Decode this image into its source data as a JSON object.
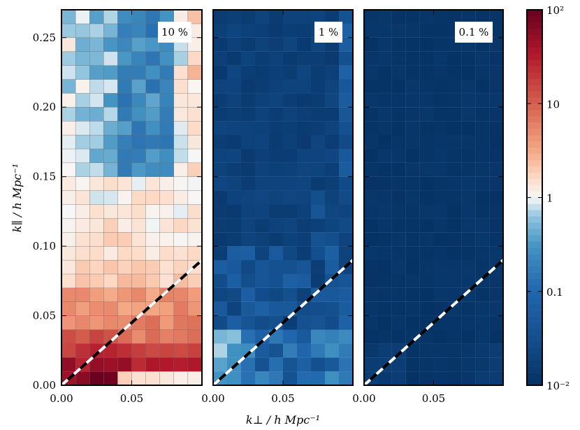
{
  "chart_data": {
    "type": "heatmap",
    "xlabel": "k⊥ / h Mpc⁻¹",
    "ylabel": "k∥ / h Mpc⁻¹",
    "xlim": [
      0.0,
      0.1
    ],
    "ylim": [
      0.0,
      0.27
    ],
    "xticks": [
      {
        "v": 0.0,
        "label": "0.00"
      },
      {
        "v": 0.05,
        "label": "0.05"
      }
    ],
    "yticks": [
      {
        "v": 0.0,
        "label": "0.00"
      },
      {
        "v": 0.05,
        "label": "0.05"
      },
      {
        "v": 0.1,
        "label": "0.10"
      },
      {
        "v": 0.15,
        "label": "0.15"
      },
      {
        "v": 0.2,
        "label": "0.20"
      },
      {
        "v": 0.25,
        "label": "0.25"
      }
    ],
    "grid_shape": {
      "cols": 10,
      "rows": 27
    },
    "wedge_line": {
      "slope": 0.9,
      "description": "horizon wedge, k∥ = 0.9 k⊥"
    },
    "colorbar": {
      "scale": "log",
      "min": 0.01,
      "max": 100,
      "ticks": [
        {
          "v": 100,
          "label": "10²"
        },
        {
          "v": 10,
          "label": "10"
        },
        {
          "v": 1,
          "label": "1"
        },
        {
          "v": 0.1,
          "label": "0.1"
        },
        {
          "v": 0.01,
          "label": "10⁻²"
        }
      ]
    },
    "panels": [
      {
        "label": "10 %",
        "noise_level_percent": 10
      },
      {
        "label": "1 %",
        "noise_level_percent": 1
      },
      {
        "label": "0.1 %",
        "noise_level_percent": 0.1
      }
    ]
  }
}
